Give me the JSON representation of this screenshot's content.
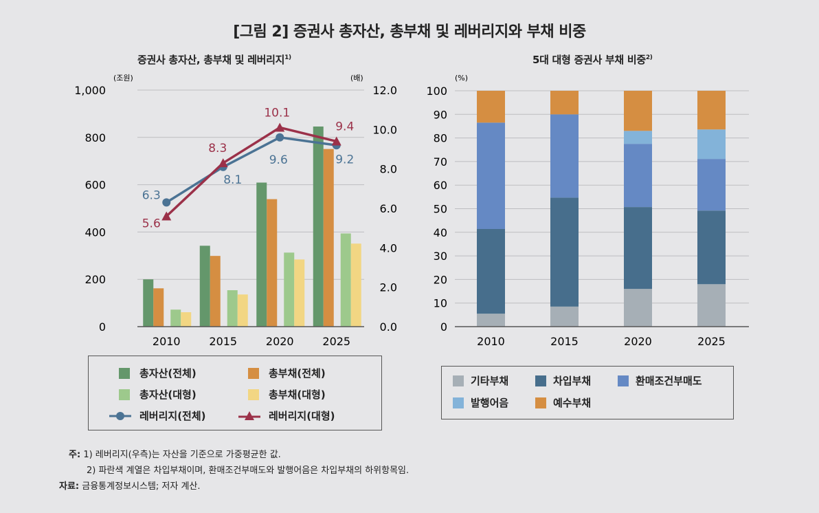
{
  "title": "[그림 2] 증권사 총자산, 총부채 및 레버리지와 부채 비중",
  "chart_data": [
    {
      "type": "bar",
      "title": "증권사 총자산, 총부채 및 레버리지",
      "title_note": "1)",
      "ylabel": "(조원)",
      "y2label": "(배)",
      "ylim": [
        0,
        1000
      ],
      "yticks": [
        0,
        200,
        400,
        600,
        800,
        1000
      ],
      "ytick_labels": [
        "0",
        "200",
        "400",
        "600",
        "800",
        "1,000"
      ],
      "y2lim": [
        0,
        12
      ],
      "y2ticks": [
        0,
        2,
        4,
        6,
        8,
        10,
        12
      ],
      "y2tick_labels": [
        "0.0",
        "2.0",
        "4.0",
        "6.0",
        "8.0",
        "10.0",
        "12.0"
      ],
      "grid": true,
      "categories": [
        "2010",
        "2015",
        "2020",
        "2025"
      ],
      "series": [
        {
          "name": "총자산(전체)",
          "kind": "bar",
          "color": "#64976b",
          "values": [
            200,
            342,
            609,
            846
          ]
        },
        {
          "name": "총부채(전체)",
          "kind": "bar",
          "color": "#d58e42",
          "values": [
            162,
            299,
            539,
            751
          ]
        },
        {
          "name": "총자산(대형)",
          "kind": "bar",
          "color": "#9dc98c",
          "values": [
            72,
            154,
            313,
            394
          ]
        },
        {
          "name": "총부채(대형)",
          "kind": "bar",
          "color": "#f2d683",
          "values": [
            61,
            136,
            284,
            351
          ]
        },
        {
          "name": "레버리지(전체)",
          "kind": "line",
          "axis": "right",
          "marker": "circle",
          "color": "#4b7394",
          "values": [
            6.3,
            8.1,
            9.6,
            9.2
          ],
          "labels": [
            "6.3",
            "8.1",
            "9.6",
            "9.2"
          ]
        },
        {
          "name": "레버리지(대형)",
          "kind": "line",
          "axis": "right",
          "marker": "triangle",
          "color": "#9b3149",
          "values": [
            5.6,
            8.3,
            10.1,
            9.4
          ],
          "labels": [
            "5.6",
            "8.3",
            "10.1",
            "9.4"
          ]
        }
      ],
      "legend_position": "bottom"
    },
    {
      "type": "bar",
      "stacked": true,
      "title": "5대 대형 증권사 부채 비중",
      "title_note": "2)",
      "ylabel": "(%)",
      "ylim": [
        0,
        100
      ],
      "yticks": [
        0,
        10,
        20,
        30,
        40,
        50,
        60,
        70,
        80,
        90,
        100
      ],
      "grid": true,
      "categories": [
        "2010",
        "2015",
        "2020",
        "2025"
      ],
      "series": [
        {
          "name": "기타부채",
          "color": "#a6afb6",
          "values": [
            5.5,
            8.5,
            16.0,
            18.0
          ]
        },
        {
          "name": "차입부채",
          "color": "#476e8c",
          "values": [
            35.9,
            46.2,
            34.7,
            31.2
          ]
        },
        {
          "name": "환매조건부매도",
          "color": "#6589c4",
          "values": [
            45.1,
            35.3,
            26.8,
            21.9
          ]
        },
        {
          "name": "발행어음",
          "color": "#83b3d9",
          "values": [
            0,
            0,
            5.5,
            12.5
          ]
        },
        {
          "name": "예수부채",
          "color": "#d58e42",
          "values": [
            13.5,
            10.0,
            17.0,
            16.4
          ]
        }
      ],
      "legend_position": "bottom"
    }
  ],
  "notes": {
    "label": "주:",
    "line1": "1) 레버리지(우측)는 자산을 기준으로 가중평균한 값.",
    "line2": "2) 파란색 계열은 차입부채이며, 환매조건부매도와 발행어음은 차입부채의 하위항목임."
  },
  "source": {
    "label": "자료:",
    "text": "금융통계정보시스템; 저자 계산."
  }
}
